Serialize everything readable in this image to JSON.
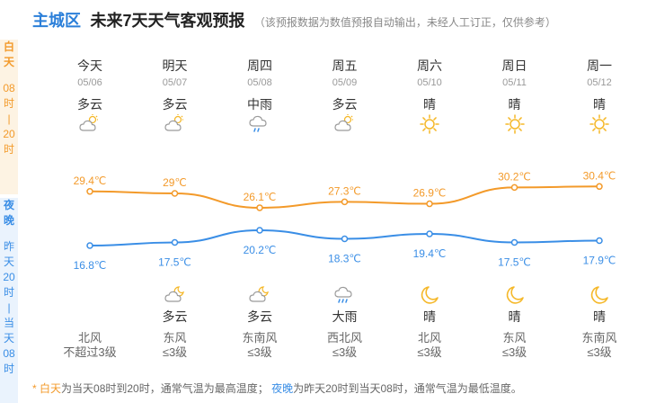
{
  "header": {
    "city": "主城区",
    "title": "未来7天天气客观预报",
    "note": "（该预报数据为数值预报自动输出，未经人工订正，仅供参考）"
  },
  "sidebar": {
    "day": [
      "白",
      "天",
      "08",
      "时",
      "|",
      "20",
      "时"
    ],
    "night": [
      "夜",
      "晚",
      "昨",
      "天",
      "20",
      "时",
      "|",
      "当",
      "天",
      "08",
      "时"
    ]
  },
  "days": [
    {
      "name": "今天",
      "date": "05/06",
      "day_cond": "多云",
      "day_icon": "partly-cloudy-icon",
      "high": "29.4℃",
      "low": "16.8℃",
      "night_cond": "",
      "night_icon": "",
      "wind_dir": "北风",
      "wind_level": "不超过3级"
    },
    {
      "name": "明天",
      "date": "05/07",
      "day_cond": "多云",
      "day_icon": "partly-cloudy-icon",
      "high": "29℃",
      "low": "17.5℃",
      "night_cond": "多云",
      "night_icon": "night-cloudy-icon",
      "wind_dir": "东风",
      "wind_level": "≤3级"
    },
    {
      "name": "周四",
      "date": "05/08",
      "day_cond": "中雨",
      "day_icon": "moderate-rain-icon",
      "high": "26.1℃",
      "low": "20.2℃",
      "night_cond": "多云",
      "night_icon": "night-cloudy-icon",
      "wind_dir": "东南风",
      "wind_level": "≤3级"
    },
    {
      "name": "周五",
      "date": "05/09",
      "day_cond": "多云",
      "day_icon": "partly-cloudy-icon",
      "high": "27.3℃",
      "low": "18.3℃",
      "night_cond": "大雨",
      "night_icon": "heavy-rain-icon",
      "wind_dir": "西北风",
      "wind_level": "≤3级"
    },
    {
      "name": "周六",
      "date": "05/10",
      "day_cond": "晴",
      "day_icon": "sun-icon",
      "high": "26.9℃",
      "low": "19.4℃",
      "night_cond": "晴",
      "night_icon": "moon-icon",
      "wind_dir": "北风",
      "wind_level": "≤3级"
    },
    {
      "name": "周日",
      "date": "05/11",
      "day_cond": "晴",
      "day_icon": "sun-icon",
      "high": "30.2℃",
      "low": "17.5℃",
      "night_cond": "晴",
      "night_icon": "moon-icon",
      "wind_dir": "东风",
      "wind_level": "≤3级"
    },
    {
      "name": "周一",
      "date": "05/12",
      "day_cond": "晴",
      "day_icon": "sun-icon",
      "high": "30.4℃",
      "low": "17.9℃",
      "night_cond": "晴",
      "night_icon": "moon-icon",
      "wind_dir": "东南风",
      "wind_level": "≤3级"
    }
  ],
  "chart_data": {
    "type": "line",
    "categories": [
      "05/06",
      "05/07",
      "05/08",
      "05/09",
      "05/10",
      "05/11",
      "05/12"
    ],
    "series": [
      {
        "values": [
          29.4,
          29,
          26.1,
          27.3,
          26.9,
          30.2,
          30.4
        ],
        "color": "#f39a2a"
      },
      {
        "values": [
          16.8,
          17.5,
          20.2,
          18.3,
          19.4,
          17.5,
          17.9
        ],
        "color": "#3a8ee6"
      }
    ]
  },
  "footer": {
    "star": "* ",
    "day_label": "白天",
    "day_text": "为当天08时到20时，通常气温为最高温度；",
    "night_label": "夜晚",
    "night_text": "为昨天20时到当天08时，通常气温为最低温度。"
  },
  "colors": {
    "accent": "#2b7fd9",
    "day": "#f39a2a",
    "night": "#3a8ee6"
  }
}
